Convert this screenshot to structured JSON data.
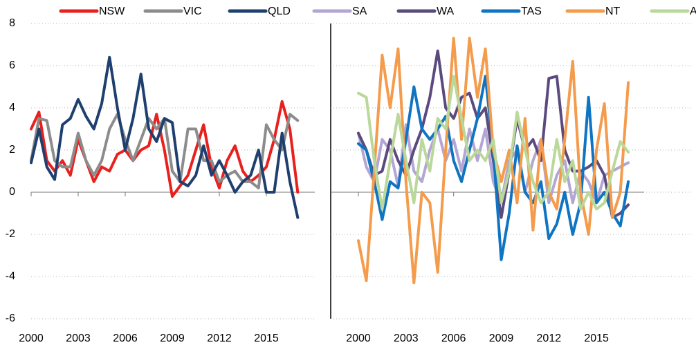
{
  "chart_data": [
    {
      "type": "line",
      "x": [
        2000,
        2000.5,
        2001,
        2001.5,
        2002,
        2002.5,
        2003,
        2003.5,
        2004,
        2004.5,
        2005,
        2005.5,
        2006,
        2006.5,
        2007,
        2007.5,
        2008,
        2008.5,
        2009,
        2009.5,
        2010,
        2010.5,
        2011,
        2011.5,
        2012,
        2012.5,
        2013,
        2013.5,
        2014,
        2014.5,
        2015,
        2015.5,
        2016,
        2016.5,
        2017
      ],
      "xlim": [
        2000,
        2018
      ],
      "xticks": [
        2000,
        2003,
        2006,
        2009,
        2012,
        2015
      ],
      "ylim": [
        -6,
        8
      ],
      "yticks": [
        -6,
        -4,
        -2,
        0,
        2,
        4,
        6,
        8
      ],
      "grid": true,
      "series": [
        {
          "name": "NSW",
          "color": "#e8201e",
          "values": [
            3,
            3.8,
            1.5,
            1.0,
            1.5,
            0.8,
            2.5,
            1.5,
            0.5,
            1.2,
            1.0,
            1.8,
            2.0,
            1.5,
            2.0,
            2.2,
            3.7,
            2.0,
            -0.2,
            0.3,
            0.8,
            2.0,
            3.2,
            1.2,
            0.2,
            1.5,
            2.2,
            1.0,
            0.5,
            0.8,
            1.2,
            2.5,
            4.3,
            3.0,
            0.0
          ]
        },
        {
          "name": "VIC",
          "color": "#8c8c8c",
          "values": [
            1.5,
            3.5,
            3.4,
            1.5,
            1.2,
            1.2,
            2.8,
            1.5,
            0.8,
            1.5,
            3.0,
            3.7,
            2.5,
            1.5,
            2.5,
            3.5,
            3.0,
            3.5,
            1.0,
            0.5,
            3.0,
            3.0,
            1.5,
            1.5,
            0.5,
            0.8,
            1.0,
            0.5,
            0.5,
            0.2,
            3.2,
            2.5,
            2.0,
            3.7,
            3.4
          ]
        },
        {
          "name": "QLD",
          "color": "#1f3f6e",
          "values": [
            1.4,
            3.0,
            1.2,
            0.6,
            3.2,
            3.5,
            4.4,
            3.6,
            3.0,
            4.2,
            6.4,
            4.0,
            2.0,
            3.5,
            5.6,
            3.0,
            2.4,
            3.5,
            3.3,
            0.5,
            0.3,
            0.8,
            2.2,
            0.8,
            1.5,
            0.8,
            0.0,
            0.5,
            0.8,
            2.0,
            0.0,
            0.0,
            2.8,
            0.5,
            -1.2
          ]
        }
      ]
    },
    {
      "type": "line",
      "x": [
        2000,
        2000.5,
        2001,
        2001.5,
        2002,
        2002.5,
        2003,
        2003.5,
        2004,
        2004.5,
        2005,
        2005.5,
        2006,
        2006.5,
        2007,
        2007.5,
        2008,
        2008.5,
        2009,
        2009.5,
        2010,
        2010.5,
        2011,
        2011.5,
        2012,
        2012.5,
        2013,
        2013.5,
        2014,
        2014.5,
        2015,
        2015.5,
        2016,
        2016.5,
        2017
      ],
      "xlim": [
        2000,
        2018
      ],
      "xticks": [
        2000,
        2003,
        2006,
        2009,
        2012,
        2015
      ],
      "ylim": [
        -6,
        8
      ],
      "yticks": [
        -6,
        -4,
        -2,
        0,
        2,
        4,
        6,
        8
      ],
      "grid": true,
      "series": [
        {
          "name": "SA",
          "color": "#b3a5d4",
          "values": [
            2.8,
            1.2,
            0.5,
            2.5,
            2.0,
            0.3,
            3.2,
            1.0,
            0.5,
            2.0,
            3.0,
            1.5,
            2.5,
            1.0,
            3.0,
            1.5,
            3.0,
            0.5,
            -0.5,
            1.5,
            2.0,
            0.0,
            1.5,
            2.5,
            -0.5,
            0.8,
            1.5,
            -0.5,
            1.0,
            0.5,
            -0.5,
            0.8,
            1.0,
            1.2,
            1.4
          ]
        },
        {
          "name": "WA",
          "color": "#5b4a7e",
          "values": [
            2.8,
            2.0,
            0.8,
            1.0,
            2.5,
            1.5,
            0.8,
            2.0,
            3.0,
            4.5,
            6.7,
            4.0,
            3.5,
            4.5,
            4.7,
            3.5,
            4.0,
            1.5,
            -1.2,
            1.0,
            3.5,
            2.0,
            2.5,
            1.5,
            5.4,
            5.5,
            2.0,
            1.0,
            1.0,
            1.2,
            1.5,
            0.8,
            -1.2,
            -1.0,
            -0.6
          ]
        },
        {
          "name": "TAS",
          "color": "#0f74c2",
          "values": [
            2.3,
            2.0,
            0.5,
            -1.3,
            0.5,
            0.2,
            2.5,
            5.0,
            3.0,
            2.5,
            3.0,
            3.6,
            1.5,
            0.5,
            2.0,
            3.5,
            5.5,
            2.0,
            -3.2,
            -1.0,
            2.2,
            0.0,
            -0.5,
            0.5,
            -2.2,
            -1.5,
            0.0,
            -2.0,
            -0.5,
            4.5,
            -0.5,
            0.0,
            -1.0,
            -1.6,
            0.5
          ]
        },
        {
          "name": "NT",
          "color": "#f49b4c",
          "values": [
            -2.3,
            -4.2,
            1.0,
            6.5,
            4.0,
            6.8,
            0.5,
            -4.3,
            0.0,
            -0.5,
            -3.8,
            2.0,
            7.3,
            2.5,
            7.3,
            4.5,
            6.8,
            2.0,
            0.5,
            2.0,
            -0.5,
            3.5,
            -1.8,
            2.5,
            0.0,
            -0.8,
            2.5,
            6.2,
            0.0,
            -2.0,
            2.0,
            4.2,
            -1.2,
            0.0,
            5.2
          ]
        },
        {
          "name": "ACT",
          "color": "#b9d89a",
          "values": [
            4.7,
            4.5,
            1.5,
            -0.8,
            1.5,
            3.7,
            1.5,
            -0.5,
            2.5,
            1.0,
            3.5,
            3.0,
            5.5,
            3.5,
            1.5,
            2.0,
            1.5,
            2.5,
            -0.5,
            1.0,
            3.8,
            2.0,
            0.5,
            -0.5,
            0.0,
            2.5,
            0.5,
            1.5,
            -0.8,
            0.0,
            -0.8,
            -0.5,
            1.0,
            2.4,
            1.9
          ]
        }
      ]
    }
  ]
}
